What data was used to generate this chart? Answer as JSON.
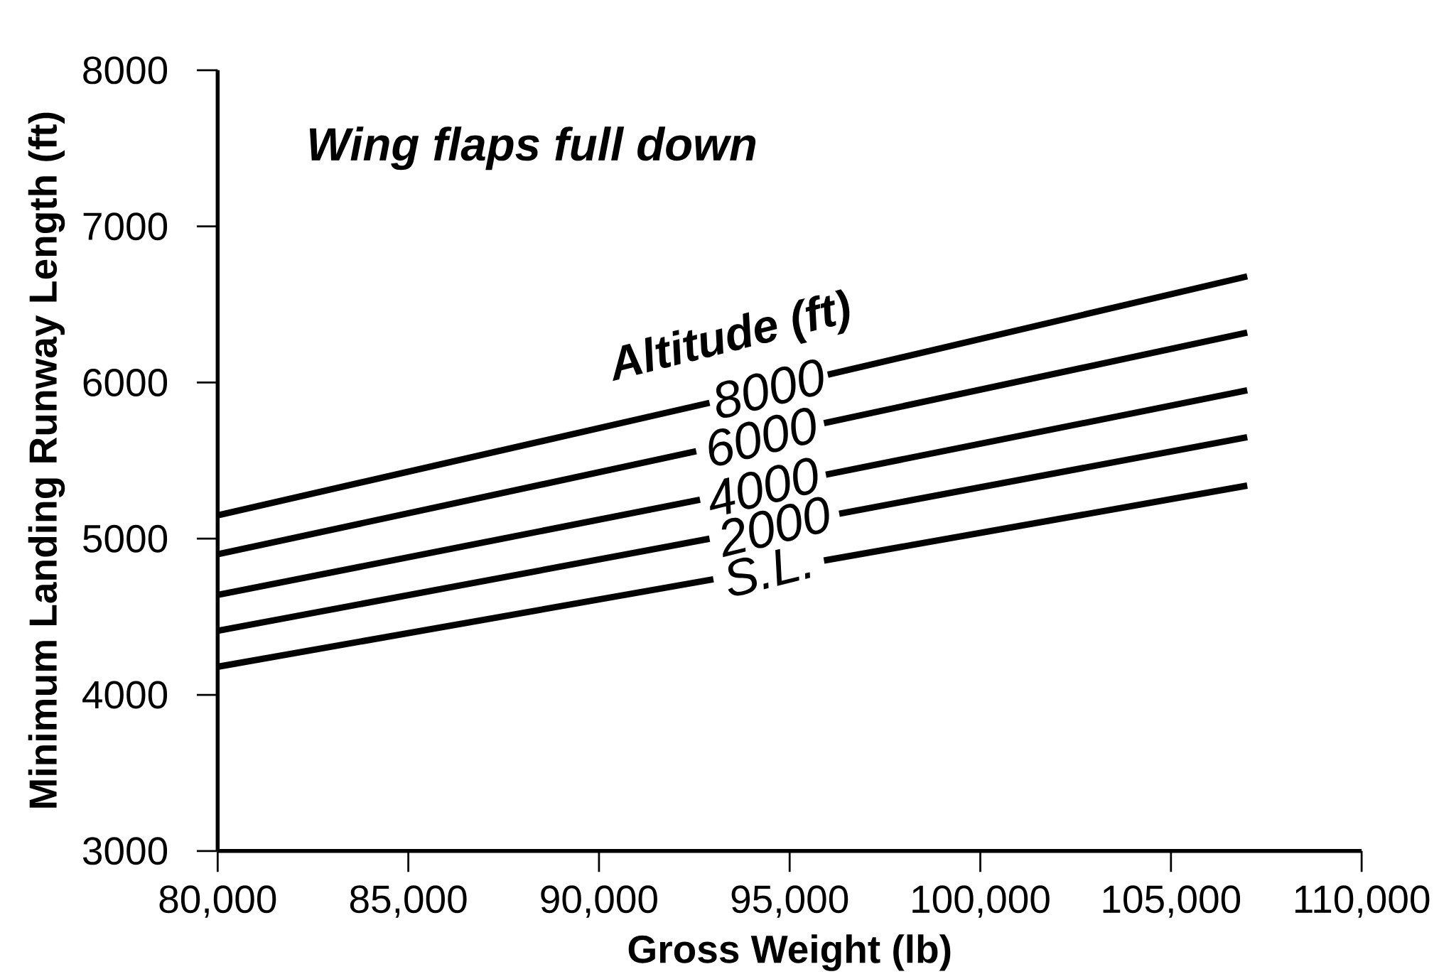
{
  "chart_data": {
    "type": "line",
    "xlabel": "Gross Weight (lb)",
    "ylabel": "Minimum Landing Runway Length (ft)",
    "legend_title": "Altitude (ft)",
    "annotations": [
      "Wing flaps full down"
    ],
    "xlim": [
      80000,
      110000
    ],
    "ylim": [
      3000,
      8000
    ],
    "xticks": [
      {
        "value": 80000,
        "label": "80,000"
      },
      {
        "value": 85000,
        "label": "85,000"
      },
      {
        "value": 90000,
        "label": "90,000"
      },
      {
        "value": 95000,
        "label": "95,000"
      },
      {
        "value": 100000,
        "label": "100,000"
      },
      {
        "value": 105000,
        "label": "105,000"
      },
      {
        "value": 110000,
        "label": "110,000"
      }
    ],
    "yticks": [
      3000,
      4000,
      5000,
      6000,
      7000,
      8000
    ],
    "series": [
      {
        "name": "8000",
        "color": "#000000",
        "x": [
          80000,
          92900,
          94450,
          96000,
          107000
        ],
        "values": [
          5150,
          5870,
          null,
          6050,
          6680
        ]
      },
      {
        "name": "6000",
        "color": "#000000",
        "x": [
          80000,
          92550,
          94250,
          95900,
          107000
        ],
        "values": [
          4900,
          5560,
          null,
          5740,
          6320
        ]
      },
      {
        "name": "4000",
        "color": "#000000",
        "x": [
          80000,
          92650,
          94300,
          95950,
          107000
        ],
        "values": [
          4640,
          5250,
          null,
          5410,
          5950
        ]
      },
      {
        "name": "2000",
        "color": "#000000",
        "x": [
          80000,
          92900,
          94600,
          96300,
          107000
        ],
        "values": [
          4410,
          5000,
          null,
          5160,
          5650
        ]
      },
      {
        "name": "S.L.",
        "color": "#000000",
        "x": [
          80000,
          93000,
          94450,
          95900,
          107000
        ],
        "values": [
          4180,
          4740,
          null,
          4860,
          5340
        ]
      }
    ]
  }
}
